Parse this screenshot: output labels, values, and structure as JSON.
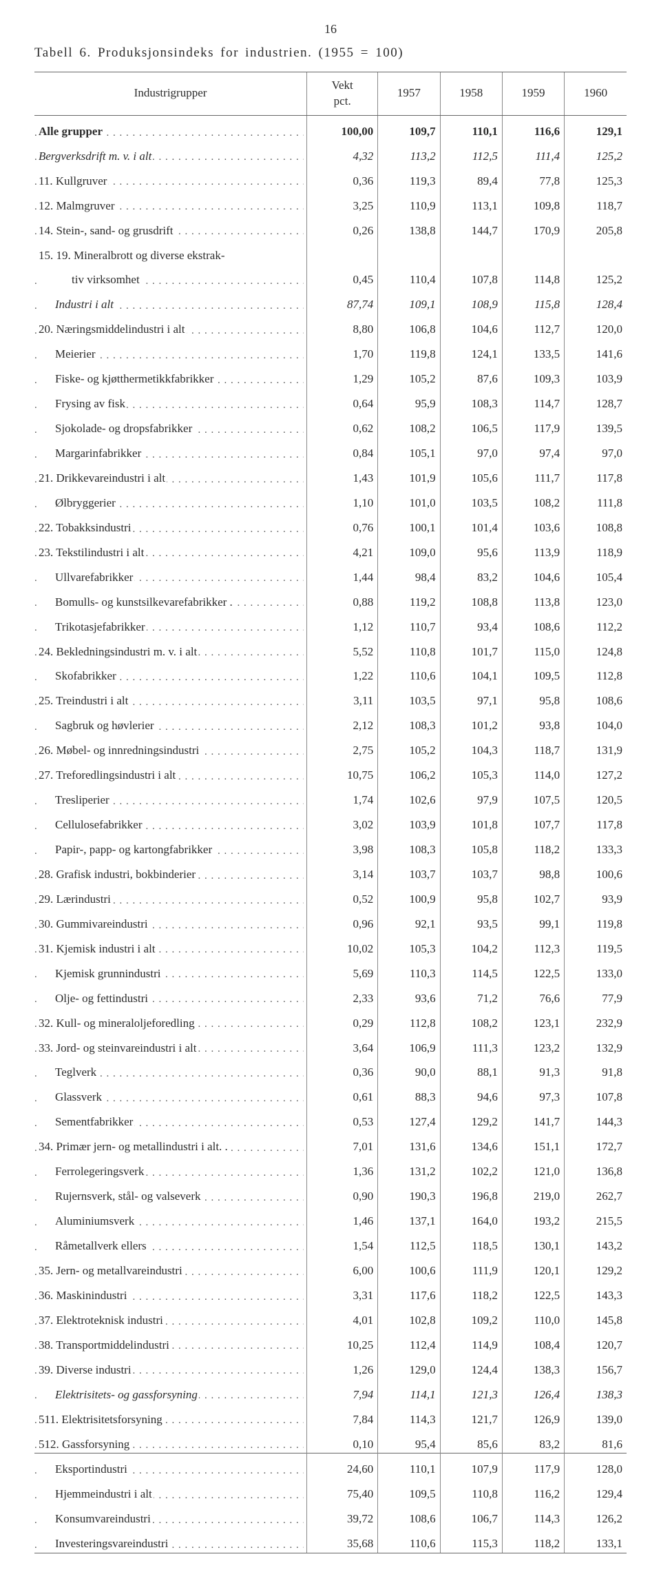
{
  "page_number": "16",
  "title": "Tabell 6. Produksjonsindeks for industrien. (1955 = 100)",
  "headers": {
    "group": "Industrigrupper",
    "weight": "Vekt\npct.",
    "y1957": "1957",
    "y1958": "1958",
    "y1959": "1959",
    "y1960": "1960"
  },
  "rows": [
    {
      "label": "Alle grupper",
      "w": "100,00",
      "a": "109,7",
      "b": "110,1",
      "c": "116,6",
      "d": "129,1",
      "bold": true
    },
    {
      "label": "Bergverksdrift m. v. i alt",
      "w": "4,32",
      "a": "113,2",
      "b": "112,5",
      "c": "111,4",
      "d": "125,2",
      "italic": true
    },
    {
      "label": "11. Kullgruver",
      "w": "0,36",
      "a": "119,3",
      "b": "89,4",
      "c": "77,8",
      "d": "125,3"
    },
    {
      "label": "12. Malmgruver",
      "w": "3,25",
      "a": "110,9",
      "b": "113,1",
      "c": "109,8",
      "d": "118,7"
    },
    {
      "label": "14. Stein-, sand- og grusdrift",
      "w": "0,26",
      "a": "138,8",
      "b": "144,7",
      "c": "170,9",
      "d": "205,8"
    },
    {
      "label": "15. 19. Mineralbrott og diverse ekstrak-",
      "nodots": true
    },
    {
      "label": "tiv virksomhet",
      "indent": 2,
      "w": "0,45",
      "a": "110,4",
      "b": "107,8",
      "c": "114,8",
      "d": "125,2"
    },
    {
      "label": "Industri i alt",
      "indent": 1,
      "w": "87,74",
      "a": "109,1",
      "b": "108,9",
      "c": "115,8",
      "d": "128,4",
      "italic": true
    },
    {
      "label": "20. Næringsmiddelindustri i alt",
      "w": "8,80",
      "a": "106,8",
      "b": "104,6",
      "c": "112,7",
      "d": "120,0"
    },
    {
      "label": "Meierier",
      "indent": 1,
      "w": "1,70",
      "a": "119,8",
      "b": "124,1",
      "c": "133,5",
      "d": "141,6"
    },
    {
      "label": "Fiske- og kjøtthermetikkfabrikker",
      "indent": 1,
      "w": "1,29",
      "a": "105,2",
      "b": "87,6",
      "c": "109,3",
      "d": "103,9"
    },
    {
      "label": "Frysing av fisk",
      "indent": 1,
      "w": "0,64",
      "a": "95,9",
      "b": "108,3",
      "c": "114,7",
      "d": "128,7"
    },
    {
      "label": "Sjokolade- og dropsfabrikker",
      "indent": 1,
      "w": "0,62",
      "a": "108,2",
      "b": "106,5",
      "c": "117,9",
      "d": "139,5"
    },
    {
      "label": "Margarinfabrikker",
      "indent": 1,
      "w": "0,84",
      "a": "105,1",
      "b": "97,0",
      "c": "97,4",
      "d": "97,0"
    },
    {
      "label": "21. Drikkevareindustri i alt",
      "w": "1,43",
      "a": "101,9",
      "b": "105,6",
      "c": "111,7",
      "d": "117,8"
    },
    {
      "label": "Ølbryggerier",
      "indent": 1,
      "w": "1,10",
      "a": "101,0",
      "b": "103,5",
      "c": "108,2",
      "d": "111,8"
    },
    {
      "label": "22. Tobakksindustri",
      "w": "0,76",
      "a": "100,1",
      "b": "101,4",
      "c": "103,6",
      "d": "108,8"
    },
    {
      "label": "23. Tekstilindustri i alt",
      "w": "4,21",
      "a": "109,0",
      "b": "95,6",
      "c": "113,9",
      "d": "118,9"
    },
    {
      "label": "Ullvarefabrikker",
      "indent": 1,
      "w": "1,44",
      "a": "98,4",
      "b": "83,2",
      "c": "104,6",
      "d": "105,4"
    },
    {
      "label": "Bomulls- og kunstsilkevarefabrikker .",
      "indent": 1,
      "w": "0,88",
      "a": "119,2",
      "b": "108,8",
      "c": "113,8",
      "d": "123,0"
    },
    {
      "label": "Trikotasjefabrikker",
      "indent": 1,
      "w": "1,12",
      "a": "110,7",
      "b": "93,4",
      "c": "108,6",
      "d": "112,2"
    },
    {
      "label": "24. Bekledningsindustri m. v. i alt",
      "w": "5,52",
      "a": "110,8",
      "b": "101,7",
      "c": "115,0",
      "d": "124,8"
    },
    {
      "label": "Skofabrikker",
      "indent": 1,
      "w": "1,22",
      "a": "110,6",
      "b": "104,1",
      "c": "109,5",
      "d": "112,8"
    },
    {
      "label": "25. Treindustri i alt",
      "w": "3,11",
      "a": "103,5",
      "b": "97,1",
      "c": "95,8",
      "d": "108,6"
    },
    {
      "label": "Sagbruk og høvlerier",
      "indent": 1,
      "w": "2,12",
      "a": "108,3",
      "b": "101,2",
      "c": "93,8",
      "d": "104,0"
    },
    {
      "label": "26. Møbel- og innredningsindustri",
      "w": "2,75",
      "a": "105,2",
      "b": "104,3",
      "c": "118,7",
      "d": "131,9"
    },
    {
      "label": "27. Treforedlingsindustri i alt",
      "w": "10,75",
      "a": "106,2",
      "b": "105,3",
      "c": "114,0",
      "d": "127,2"
    },
    {
      "label": "Tresliperier",
      "indent": 1,
      "w": "1,74",
      "a": "102,6",
      "b": "97,9",
      "c": "107,5",
      "d": "120,5"
    },
    {
      "label": "Cellulosefabrikker",
      "indent": 1,
      "w": "3,02",
      "a": "103,9",
      "b": "101,8",
      "c": "107,7",
      "d": "117,8"
    },
    {
      "label": "Papir-, papp- og kartongfabrikker",
      "indent": 1,
      "w": "3,98",
      "a": "108,3",
      "b": "105,8",
      "c": "118,2",
      "d": "133,3"
    },
    {
      "label": "28. Grafisk industri, bokbinderier",
      "w": "3,14",
      "a": "103,7",
      "b": "103,7",
      "c": "98,8",
      "d": "100,6"
    },
    {
      "label": "29. Lærindustri",
      "w": "0,52",
      "a": "100,9",
      "b": "95,8",
      "c": "102,7",
      "d": "93,9"
    },
    {
      "label": "30. Gummivareindustri",
      "w": "0,96",
      "a": "92,1",
      "b": "93,5",
      "c": "99,1",
      "d": "119,8"
    },
    {
      "label": "31. Kjemisk industri i alt",
      "w": "10,02",
      "a": "105,3",
      "b": "104,2",
      "c": "112,3",
      "d": "119,5"
    },
    {
      "label": "Kjemisk grunnindustri",
      "indent": 1,
      "w": "5,69",
      "a": "110,3",
      "b": "114,5",
      "c": "122,5",
      "d": "133,0"
    },
    {
      "label": "Olje- og fettindustri",
      "indent": 1,
      "w": "2,33",
      "a": "93,6",
      "b": "71,2",
      "c": "76,6",
      "d": "77,9"
    },
    {
      "label": "32. Kull- og mineraloljeforedling",
      "w": "0,29",
      "a": "112,8",
      "b": "108,2",
      "c": "123,1",
      "d": "232,9"
    },
    {
      "label": "33. Jord- og steinvareindustri i alt",
      "w": "3,64",
      "a": "106,9",
      "b": "111,3",
      "c": "123,2",
      "d": "132,9"
    },
    {
      "label": "Teglverk",
      "indent": 1,
      "w": "0,36",
      "a": "90,0",
      "b": "88,1",
      "c": "91,3",
      "d": "91,8"
    },
    {
      "label": "Glassverk",
      "indent": 1,
      "w": "0,61",
      "a": "88,3",
      "b": "94,6",
      "c": "97,3",
      "d": "107,8"
    },
    {
      "label": "Sementfabrikker",
      "indent": 1,
      "w": "0,53",
      "a": "127,4",
      "b": "129,2",
      "c": "141,7",
      "d": "144,3"
    },
    {
      "label": "34. Primær jern- og metallindustri i alt. .",
      "w": "7,01",
      "a": "131,6",
      "b": "134,6",
      "c": "151,1",
      "d": "172,7"
    },
    {
      "label": "Ferrolegeringsverk",
      "indent": 1,
      "w": "1,36",
      "a": "131,2",
      "b": "102,2",
      "c": "121,0",
      "d": "136,8"
    },
    {
      "label": "Rujernsverk, stål- og valseverk",
      "indent": 1,
      "w": "0,90",
      "a": "190,3",
      "b": "196,8",
      "c": "219,0",
      "d": "262,7"
    },
    {
      "label": "Aluminiumsverk",
      "indent": 1,
      "w": "1,46",
      "a": "137,1",
      "b": "164,0",
      "c": "193,2",
      "d": "215,5"
    },
    {
      "label": "Råmetallverk ellers",
      "indent": 1,
      "w": "1,54",
      "a": "112,5",
      "b": "118,5",
      "c": "130,1",
      "d": "143,2"
    },
    {
      "label": "35. Jern- og metallvareindustri",
      "w": "6,00",
      "a": "100,6",
      "b": "111,9",
      "c": "120,1",
      "d": "129,2"
    },
    {
      "label": "36. Maskinindustri",
      "w": "3,31",
      "a": "117,6",
      "b": "118,2",
      "c": "122,5",
      "d": "143,3"
    },
    {
      "label": "37. Elektroteknisk industri",
      "w": "4,01",
      "a": "102,8",
      "b": "109,2",
      "c": "110,0",
      "d": "145,8"
    },
    {
      "label": "38. Transportmiddelindustri",
      "w": "10,25",
      "a": "112,4",
      "b": "114,9",
      "c": "108,4",
      "d": "120,7"
    },
    {
      "label": "39. Diverse industri",
      "w": "1,26",
      "a": "129,0",
      "b": "124,4",
      "c": "138,3",
      "d": "156,7"
    },
    {
      "label": "Elektrisitets- og gassforsyning",
      "indent": 1,
      "w": "7,94",
      "a": "114,1",
      "b": "121,3",
      "c": "126,4",
      "d": "138,3",
      "italic": true
    },
    {
      "label": "511. Elektrisitetsforsyning",
      "w": "7,84",
      "a": "114,3",
      "b": "121,7",
      "c": "126,9",
      "d": "139,0"
    },
    {
      "label": "512. Gassforsyning",
      "w": "0,10",
      "a": "95,4",
      "b": "85,6",
      "c": "83,2",
      "d": "81,6"
    }
  ],
  "footer_rows": [
    {
      "label": "Eksportindustri",
      "indent": 1,
      "w": "24,60",
      "a": "110,1",
      "b": "107,9",
      "c": "117,9",
      "d": "128,0"
    },
    {
      "label": "Hjemmeindustri i alt",
      "indent": 1,
      "w": "75,40",
      "a": "109,5",
      "b": "110,8",
      "c": "116,2",
      "d": "129,4"
    },
    {
      "label": "Konsumvareindustri",
      "indent": 1,
      "w": "39,72",
      "a": "108,6",
      "b": "106,7",
      "c": "114,3",
      "d": "126,2"
    },
    {
      "label": "Investeringsvareindustri",
      "indent": 1,
      "w": "35,68",
      "a": "110,6",
      "b": "115,3",
      "c": "118,2",
      "d": "133,1"
    }
  ]
}
